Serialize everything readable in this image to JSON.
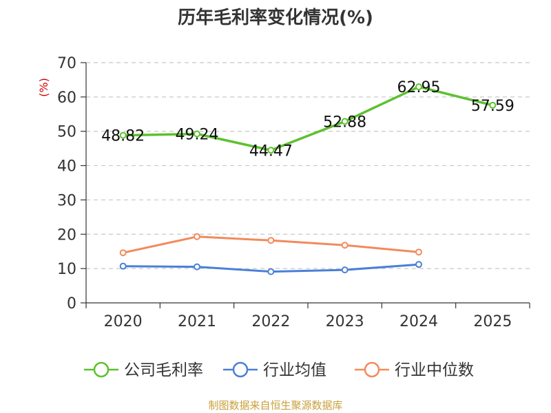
{
  "chart_data": {
    "type": "line",
    "title": "历年毛利率变化情况(%)",
    "ylabel": "(%)",
    "xlabel": "",
    "categories": [
      "2020",
      "2021",
      "2022",
      "2023",
      "2024",
      "2025"
    ],
    "ylim": [
      0,
      70
    ],
    "yticks": [
      0,
      10,
      20,
      30,
      40,
      50,
      60,
      70
    ],
    "grid": true,
    "legend_position": "bottom",
    "series": [
      {
        "name": "公司毛利率",
        "color": "#5cc12e",
        "values": [
          48.82,
          49.24,
          44.47,
          52.88,
          62.95,
          57.59
        ],
        "labels": [
          "48.82",
          "49.24",
          "44.47",
          "52.88",
          "62.95",
          "57.59"
        ]
      },
      {
        "name": "行业均值",
        "color": "#4a7fd8",
        "values": [
          10.7,
          10.5,
          9.1,
          9.6,
          11.2,
          null
        ]
      },
      {
        "name": "行业中位数",
        "color": "#f28a5b",
        "values": [
          14.6,
          19.3,
          18.2,
          16.8,
          14.8,
          null
        ]
      }
    ]
  },
  "footer": {
    "source": "制图数据来自恒生聚源数据库"
  }
}
